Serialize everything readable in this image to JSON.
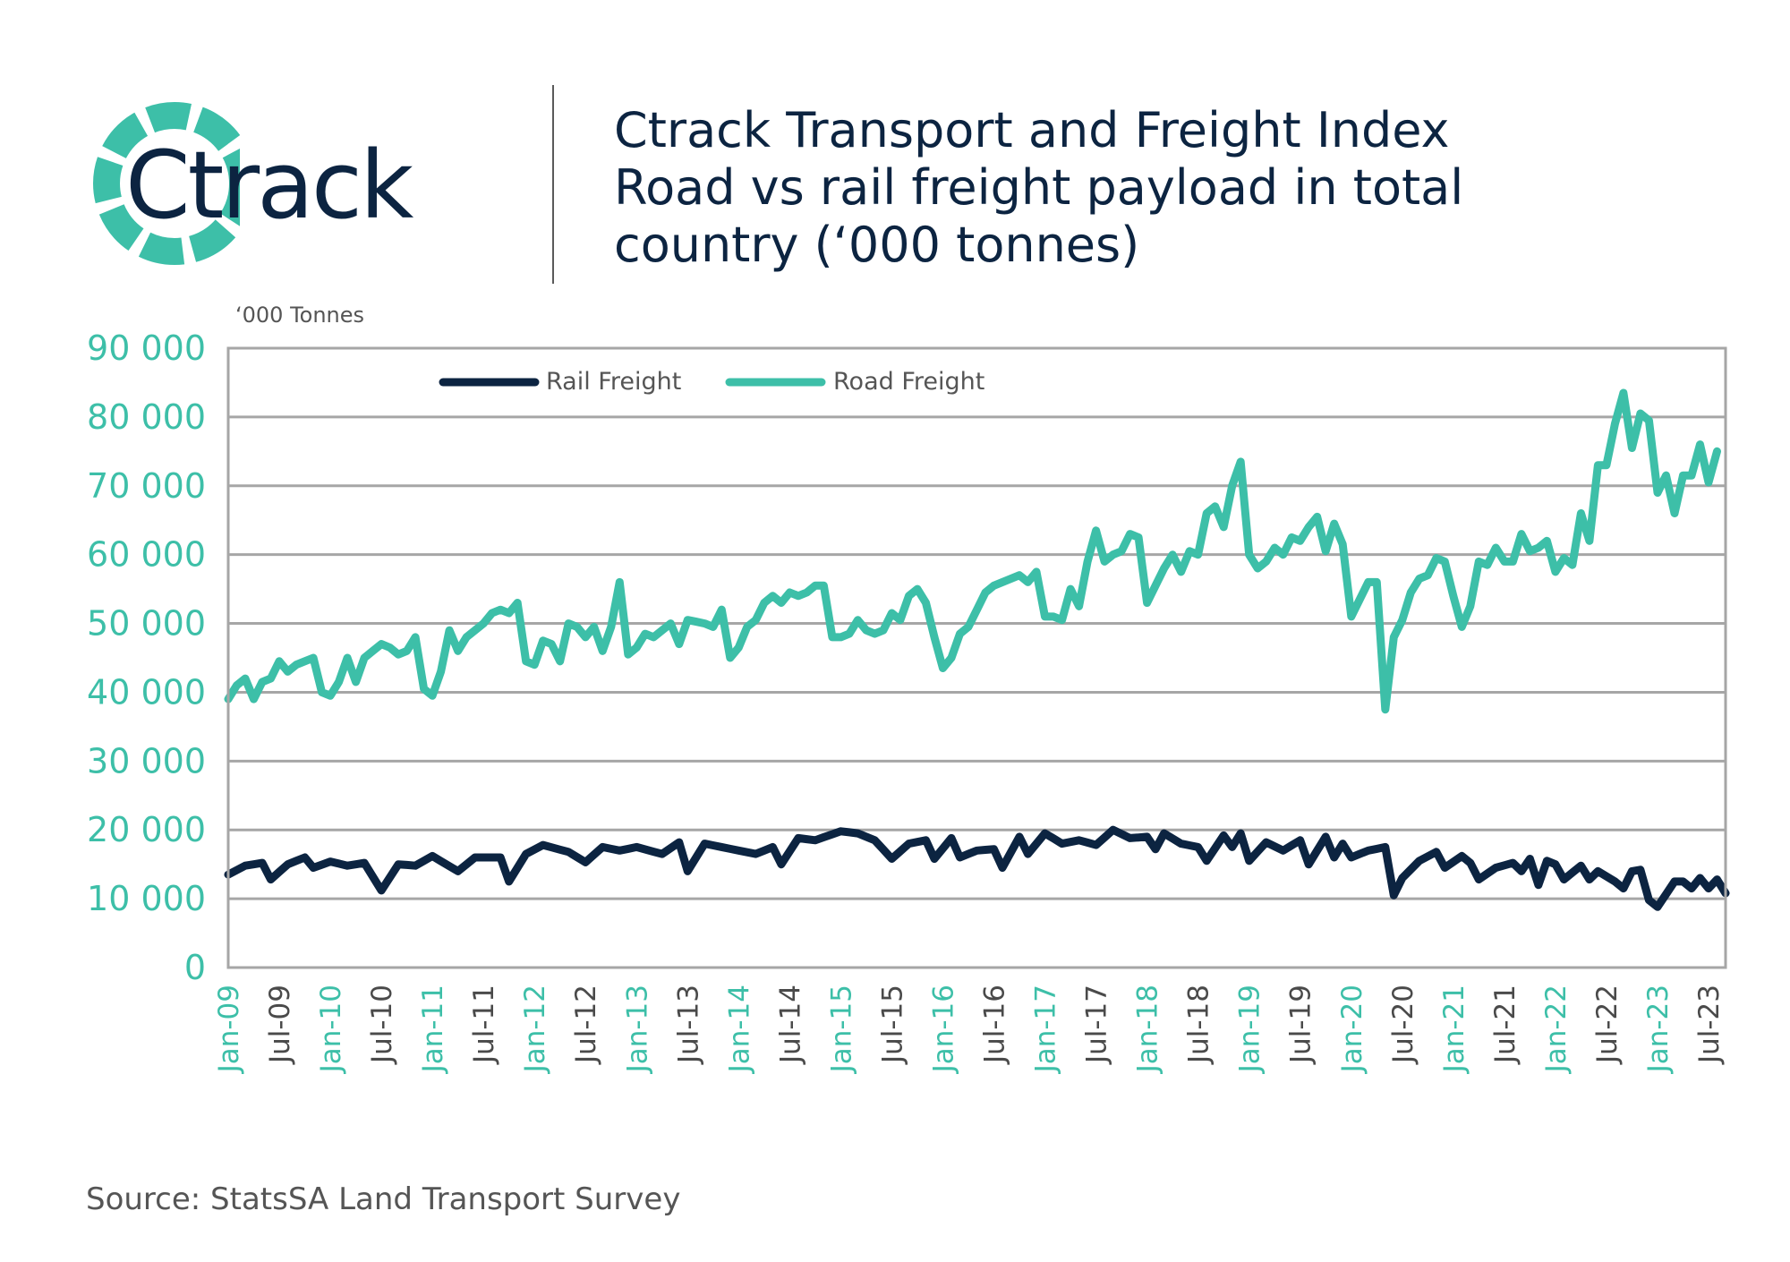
{
  "header": {
    "logo_text": "Ctrack",
    "title_lines": [
      "Ctrack Transport and Freight Index",
      "Road vs rail freight payload in total",
      "country (‘000 tonnes)"
    ]
  },
  "source": "Source: StatsSA Land Transport Survey",
  "colors": {
    "rail": "#0c2441",
    "road": "#3dbfa8",
    "axis_text": "#3dbfa8",
    "grid": "#a6a6a6",
    "tick_dark": "#4a4a4a"
  },
  "chart_data": {
    "type": "line",
    "title": "Road vs rail freight payload in total country (‘000 tonnes)",
    "ylabel": "‘000 Tonnes",
    "ylim": [
      0,
      90000
    ],
    "y_ticks": [
      0,
      10000,
      20000,
      30000,
      40000,
      50000,
      60000,
      70000,
      80000,
      90000
    ],
    "y_tick_labels": [
      "0",
      "10 000",
      "20 000",
      "30 000",
      "40 000",
      "50 000",
      "60 000",
      "70 000",
      "80 000",
      "90 000"
    ],
    "x_start": "Jan-09",
    "n_months": 177,
    "x_ticks": [
      {
        "label": "Jan-09",
        "index": 0
      },
      {
        "label": "Jul-09",
        "index": 6
      },
      {
        "label": "Jan-10",
        "index": 12
      },
      {
        "label": "Jul-10",
        "index": 18
      },
      {
        "label": "Jan-11",
        "index": 24
      },
      {
        "label": "Jul-11",
        "index": 30
      },
      {
        "label": "Jan-12",
        "index": 36
      },
      {
        "label": "Jul-12",
        "index": 42
      },
      {
        "label": "Jan-13",
        "index": 48
      },
      {
        "label": "Jul-13",
        "index": 54
      },
      {
        "label": "Jan-14",
        "index": 60
      },
      {
        "label": "Jul-14",
        "index": 66
      },
      {
        "label": "Jan-15",
        "index": 72
      },
      {
        "label": "Jul-15",
        "index": 78
      },
      {
        "label": "Jan-16",
        "index": 84
      },
      {
        "label": "Jul-16",
        "index": 90
      },
      {
        "label": "Jan-17",
        "index": 96
      },
      {
        "label": "Jul-17",
        "index": 102
      },
      {
        "label": "Jan-18",
        "index": 108
      },
      {
        "label": "Jul-18",
        "index": 114
      },
      {
        "label": "Jan-19",
        "index": 120
      },
      {
        "label": "Jul-19",
        "index": 126
      },
      {
        "label": "Jan-20",
        "index": 132
      },
      {
        "label": "Jul-20",
        "index": 138
      },
      {
        "label": "Jan-21",
        "index": 144
      },
      {
        "label": "Jul-21",
        "index": 150
      },
      {
        "label": "Jan-22",
        "index": 156
      },
      {
        "label": "Jul-22",
        "index": 162
      },
      {
        "label": "Jan-23",
        "index": 168
      },
      {
        "label": "Jul-23",
        "index": 174
      }
    ],
    "legend_position": "top-left",
    "series": [
      {
        "name": "Rail Freight",
        "anchors": [
          [
            0,
            13500
          ],
          [
            2,
            14800
          ],
          [
            4,
            15200
          ],
          [
            5,
            12800
          ],
          [
            7,
            15000
          ],
          [
            9,
            16000
          ],
          [
            10,
            14500
          ],
          [
            12,
            15400
          ],
          [
            14,
            14800
          ],
          [
            16,
            15200
          ],
          [
            18,
            11200
          ],
          [
            20,
            15000
          ],
          [
            22,
            14800
          ],
          [
            24,
            16200
          ],
          [
            27,
            14000
          ],
          [
            29,
            16000
          ],
          [
            32,
            16000
          ],
          [
            33,
            12500
          ],
          [
            35,
            16500
          ],
          [
            37,
            17800
          ],
          [
            40,
            16800
          ],
          [
            42,
            15300
          ],
          [
            44,
            17500
          ],
          [
            46,
            17000
          ],
          [
            48,
            17500
          ],
          [
            51,
            16500
          ],
          [
            53,
            18200
          ],
          [
            54,
            14000
          ],
          [
            56,
            18000
          ],
          [
            58,
            17500
          ],
          [
            60,
            17000
          ],
          [
            62,
            16500
          ],
          [
            64,
            17500
          ],
          [
            65,
            15000
          ],
          [
            67,
            18800
          ],
          [
            69,
            18500
          ],
          [
            72,
            19800
          ],
          [
            74,
            19500
          ],
          [
            76,
            18500
          ],
          [
            78,
            15800
          ],
          [
            80,
            18000
          ],
          [
            82,
            18500
          ],
          [
            83,
            15800
          ],
          [
            85,
            18800
          ],
          [
            86,
            16000
          ],
          [
            88,
            17000
          ],
          [
            90,
            17200
          ],
          [
            91,
            14500
          ],
          [
            93,
            19000
          ],
          [
            94,
            16500
          ],
          [
            96,
            19500
          ],
          [
            98,
            18000
          ],
          [
            100,
            18500
          ],
          [
            102,
            17800
          ],
          [
            104,
            20000
          ],
          [
            106,
            18800
          ],
          [
            108,
            19000
          ],
          [
            109,
            17200
          ],
          [
            110,
            19500
          ],
          [
            112,
            18000
          ],
          [
            114,
            17500
          ],
          [
            115,
            15500
          ],
          [
            117,
            19200
          ],
          [
            118,
            17500
          ],
          [
            119,
            19500
          ],
          [
            120,
            15500
          ],
          [
            122,
            18200
          ],
          [
            124,
            17000
          ],
          [
            126,
            18500
          ],
          [
            127,
            15000
          ],
          [
            129,
            19000
          ],
          [
            130,
            16000
          ],
          [
            131,
            18000
          ],
          [
            132,
            16000
          ],
          [
            134,
            17000
          ],
          [
            136,
            17500
          ],
          [
            137,
            10500
          ],
          [
            138,
            13000
          ],
          [
            140,
            15500
          ],
          [
            142,
            16800
          ],
          [
            143,
            14500
          ],
          [
            145,
            16200
          ],
          [
            146,
            15200
          ],
          [
            147,
            12800
          ],
          [
            149,
            14500
          ],
          [
            151,
            15200
          ],
          [
            152,
            14000
          ],
          [
            153,
            15800
          ],
          [
            154,
            12000
          ],
          [
            155,
            15500
          ],
          [
            156,
            15000
          ],
          [
            157,
            12800
          ],
          [
            159,
            14800
          ],
          [
            160,
            12800
          ],
          [
            161,
            14000
          ],
          [
            163,
            12500
          ],
          [
            164,
            11500
          ],
          [
            165,
            14000
          ],
          [
            166,
            14200
          ],
          [
            167,
            9800
          ],
          [
            168,
            8800
          ],
          [
            170,
            12500
          ],
          [
            171,
            12500
          ],
          [
            172,
            11500
          ],
          [
            173,
            13000
          ],
          [
            174,
            11500
          ],
          [
            175,
            12800
          ],
          [
            176,
            10800
          ]
        ]
      },
      {
        "name": "Road Freight",
        "anchors": [
          [
            0,
            39000
          ],
          [
            1,
            41000
          ],
          [
            2,
            42000
          ],
          [
            3,
            39000
          ],
          [
            4,
            41500
          ],
          [
            5,
            42000
          ],
          [
            6,
            44500
          ],
          [
            7,
            43000
          ],
          [
            8,
            44000
          ],
          [
            10,
            45000
          ],
          [
            11,
            40000
          ],
          [
            12,
            39500
          ],
          [
            13,
            41500
          ],
          [
            14,
            45000
          ],
          [
            15,
            41500
          ],
          [
            16,
            45000
          ],
          [
            17,
            46000
          ],
          [
            18,
            47000
          ],
          [
            19,
            46500
          ],
          [
            20,
            45500
          ],
          [
            21,
            46000
          ],
          [
            22,
            48000
          ],
          [
            23,
            40500
          ],
          [
            24,
            39500
          ],
          [
            25,
            43000
          ],
          [
            26,
            49000
          ],
          [
            27,
            46000
          ],
          [
            28,
            48000
          ],
          [
            30,
            50000
          ],
          [
            31,
            51500
          ],
          [
            32,
            52000
          ],
          [
            33,
            51500
          ],
          [
            34,
            53000
          ],
          [
            35,
            44500
          ],
          [
            36,
            44000
          ],
          [
            37,
            47500
          ],
          [
            38,
            47000
          ],
          [
            39,
            44500
          ],
          [
            40,
            50000
          ],
          [
            41,
            49500
          ],
          [
            42,
            48000
          ],
          [
            43,
            49500
          ],
          [
            44,
            46000
          ],
          [
            45,
            49500
          ],
          [
            46,
            56000
          ],
          [
            47,
            45500
          ],
          [
            48,
            46500
          ],
          [
            49,
            48500
          ],
          [
            50,
            48000
          ],
          [
            52,
            50000
          ],
          [
            53,
            47000
          ],
          [
            54,
            50500
          ],
          [
            56,
            50000
          ],
          [
            57,
            49500
          ],
          [
            58,
            52000
          ],
          [
            59,
            45000
          ],
          [
            60,
            46500
          ],
          [
            61,
            49500
          ],
          [
            62,
            50500
          ],
          [
            63,
            53000
          ],
          [
            64,
            54000
          ],
          [
            65,
            53000
          ],
          [
            66,
            54500
          ],
          [
            67,
            54000
          ],
          [
            68,
            54500
          ],
          [
            69,
            55500
          ],
          [
            70,
            55500
          ],
          [
            71,
            48000
          ],
          [
            72,
            48000
          ],
          [
            73,
            48500
          ],
          [
            74,
            50500
          ],
          [
            75,
            49000
          ],
          [
            76,
            48500
          ],
          [
            77,
            49000
          ],
          [
            78,
            51500
          ],
          [
            79,
            50500
          ],
          [
            80,
            54000
          ],
          [
            81,
            55000
          ],
          [
            82,
            53000
          ],
          [
            83,
            48000
          ],
          [
            84,
            43500
          ],
          [
            85,
            45000
          ],
          [
            86,
            48500
          ],
          [
            87,
            49500
          ],
          [
            88,
            52000
          ],
          [
            89,
            54500
          ],
          [
            90,
            55500
          ],
          [
            92,
            56500
          ],
          [
            93,
            57000
          ],
          [
            94,
            56000
          ],
          [
            95,
            57500
          ],
          [
            96,
            51000
          ],
          [
            97,
            51000
          ],
          [
            98,
            50500
          ],
          [
            99,
            55000
          ],
          [
            100,
            52500
          ],
          [
            101,
            59000
          ],
          [
            102,
            63500
          ],
          [
            103,
            59000
          ],
          [
            104,
            60000
          ],
          [
            105,
            60500
          ],
          [
            106,
            63000
          ],
          [
            107,
            62500
          ],
          [
            108,
            53000
          ],
          [
            109,
            55500
          ],
          [
            110,
            58000
          ],
          [
            111,
            60000
          ],
          [
            112,
            57500
          ],
          [
            113,
            60500
          ],
          [
            114,
            60000
          ],
          [
            115,
            66000
          ],
          [
            116,
            67000
          ],
          [
            117,
            64000
          ],
          [
            118,
            70000
          ],
          [
            119,
            73500
          ],
          [
            120,
            60000
          ],
          [
            121,
            58000
          ],
          [
            122,
            59000
          ],
          [
            123,
            61000
          ],
          [
            124,
            60000
          ],
          [
            125,
            62500
          ],
          [
            126,
            62000
          ],
          [
            127,
            64000
          ],
          [
            128,
            65500
          ],
          [
            129,
            60500
          ],
          [
            130,
            64500
          ],
          [
            131,
            61500
          ],
          [
            132,
            51000
          ],
          [
            133,
            53500
          ],
          [
            134,
            56000
          ],
          [
            135,
            56000
          ],
          [
            136,
            37500
          ],
          [
            137,
            48000
          ],
          [
            138,
            50500
          ],
          [
            139,
            54500
          ],
          [
            140,
            56500
          ],
          [
            141,
            57000
          ],
          [
            142,
            59500
          ],
          [
            143,
            59000
          ],
          [
            144,
            54000
          ],
          [
            145,
            49500
          ],
          [
            146,
            52500
          ],
          [
            147,
            59000
          ],
          [
            148,
            58500
          ],
          [
            149,
            61000
          ],
          [
            150,
            59000
          ],
          [
            151,
            59000
          ],
          [
            152,
            63000
          ],
          [
            153,
            60500
          ],
          [
            154,
            61000
          ],
          [
            155,
            62000
          ],
          [
            156,
            57500
          ],
          [
            157,
            59500
          ],
          [
            158,
            58500
          ],
          [
            159,
            66000
          ],
          [
            160,
            62000
          ],
          [
            161,
            73000
          ],
          [
            162,
            73000
          ],
          [
            163,
            79000
          ],
          [
            164,
            83500
          ],
          [
            165,
            75500
          ],
          [
            166,
            80500
          ],
          [
            167,
            79500
          ],
          [
            168,
            69000
          ],
          [
            169,
            71500
          ],
          [
            170,
            66000
          ],
          [
            171,
            71500
          ],
          [
            172,
            71500
          ],
          [
            173,
            76000
          ],
          [
            174,
            70500
          ],
          [
            175,
            75000
          ]
        ]
      }
    ]
  }
}
